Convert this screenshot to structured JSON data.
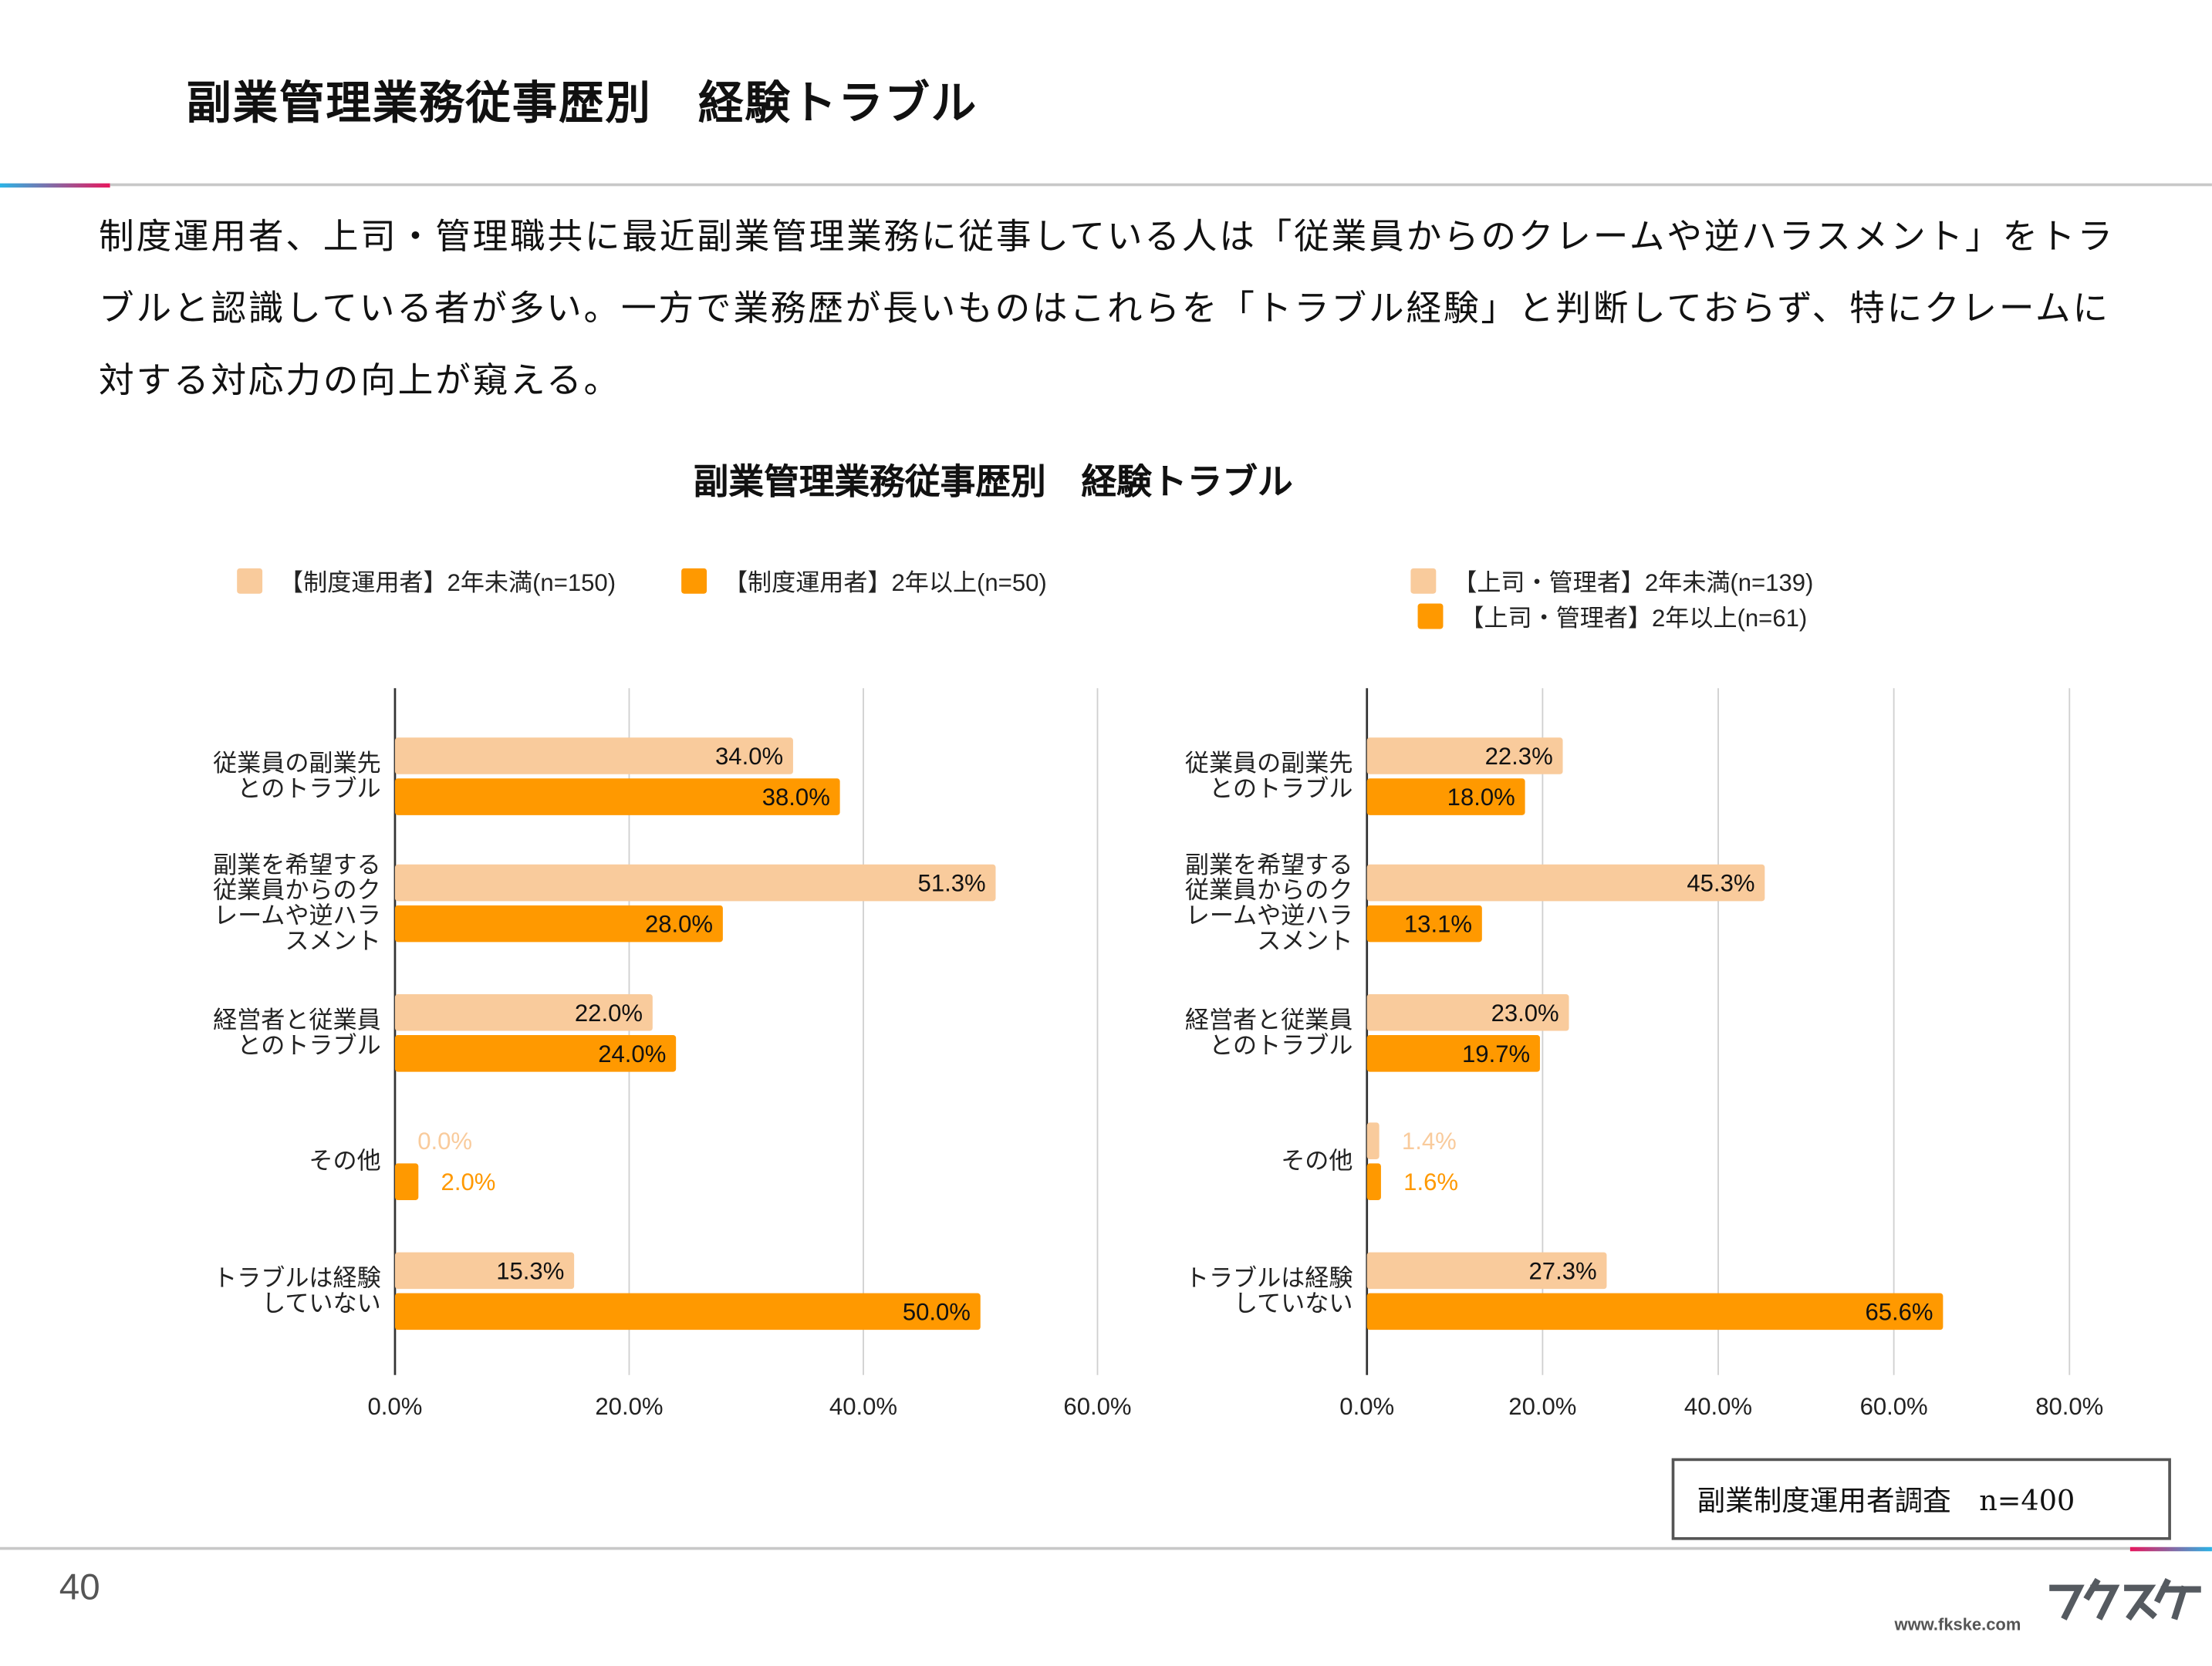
{
  "header": {
    "title": "副業管理業務従事歴別　経験トラブル"
  },
  "body_text": "制度運用者、上司・管理職共に最近副業管理業務に従事している人は「従業員からのクレームや逆ハラスメント」をトラブルと認識している者が多い。一方で業務歴が長いものはこれらを「トラブル経験」と判断しておらず、特にクレームに対する対応力の向上が窺える。",
  "footer": {
    "note": "副業制度運用者調査　n=400",
    "page_number": "40",
    "url": "www.fkske.com",
    "logo_text": "フクスケ"
  },
  "colors": {
    "light": "#f9cb9c",
    "dark": "#ff9900"
  },
  "chart_data": [
    {
      "type": "bar",
      "orientation": "horizontal",
      "title": "副業管理業務従事歴別　経験トラブル",
      "categories": [
        "従業員の副業先\nとのトラブル",
        "副業を希望する\n従業員からのク\nレームや逆ハラ\nスメント",
        "経営者と従業員\nとのトラブル",
        "その他",
        "トラブルは経験\nしていない"
      ],
      "series": [
        {
          "name": "【制度運用者】2年未満(n=150)",
          "values": [
            34.0,
            51.3,
            22.0,
            0.0,
            15.3
          ],
          "labels": [
            "34.0%",
            "51.3%",
            "22.0%",
            "0.0%",
            "15.3%"
          ]
        },
        {
          "name": "【制度運用者】2年以上(n=50)",
          "values": [
            38.0,
            28.0,
            24.0,
            2.0,
            50.0
          ],
          "labels": [
            "38.0%",
            "28.0%",
            "24.0%",
            "2.0%",
            "50.0%"
          ]
        }
      ],
      "xlim": [
        0,
        60
      ],
      "ticks": [
        "0.0%",
        "20.0%",
        "40.0%",
        "60.0%"
      ],
      "tick_values": [
        0,
        20,
        40,
        60
      ],
      "grid": true,
      "legend": "top"
    },
    {
      "type": "bar",
      "orientation": "horizontal",
      "categories": [
        "従業員の副業先\nとのトラブル",
        "副業を希望する\n従業員からのク\nレームや逆ハラ\nスメント",
        "経営者と従業員\nとのトラブル",
        "その他",
        "トラブルは経験\nしていない"
      ],
      "series": [
        {
          "name": "【上司・管理者】2年未満(n=139)",
          "values": [
            22.3,
            45.3,
            23.0,
            1.4,
            27.3
          ],
          "labels": [
            "22.3%",
            "45.3%",
            "23.0%",
            "1.4%",
            "27.3%"
          ]
        },
        {
          "name": "【上司・管理者】2年以上(n=61)",
          "values": [
            18.0,
            13.1,
            19.7,
            1.6,
            65.6
          ],
          "labels": [
            "18.0%",
            "13.1%",
            "19.7%",
            "1.6%",
            "65.6%"
          ]
        }
      ],
      "xlim": [
        0,
        80
      ],
      "ticks": [
        "0.0%",
        "20.0%",
        "40.0%",
        "60.0%",
        "80.0%"
      ],
      "tick_values": [
        0,
        20,
        40,
        60,
        80
      ],
      "grid": true,
      "legend": "top"
    }
  ]
}
